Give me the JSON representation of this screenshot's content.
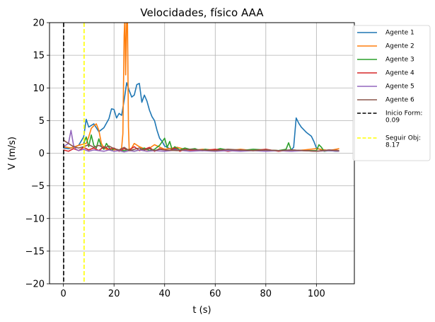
{
  "chart_data": {
    "type": "line",
    "title": "Velocidades, físico AAA",
    "xlabel": "t (s)",
    "ylabel": "V (m/s)",
    "xlim": [
      -5.5,
      115
    ],
    "ylim": [
      -20,
      20
    ],
    "xticks": [
      0,
      20,
      40,
      60,
      80,
      100
    ],
    "yticks": [
      -20,
      -15,
      -10,
      -5,
      0,
      5,
      10,
      15,
      20
    ],
    "xtick_labels": [
      "0",
      "20",
      "40",
      "60",
      "80",
      "100"
    ],
    "ytick_labels": [
      "−20",
      "−15",
      "−10",
      "−5",
      "0",
      "5",
      "10",
      "15",
      "20"
    ],
    "grid": true,
    "legend_position": "outside-right-top",
    "series": [
      {
        "name": "Agente 1",
        "color": "#1f77b4",
        "x": [
          0,
          2,
          4,
          6,
          8,
          9,
          10,
          12,
          14,
          16,
          18,
          19,
          20,
          21,
          22,
          23,
          24,
          25,
          26,
          27,
          28,
          29,
          30,
          31,
          32,
          33,
          34,
          35,
          36,
          37,
          38,
          39,
          40,
          41,
          42,
          44,
          46,
          48,
          50,
          55,
          60,
          65,
          70,
          75,
          80,
          85,
          90,
          91,
          92,
          93,
          94,
          96,
          98,
          99,
          100,
          102,
          105,
          108,
          109
        ],
        "y": [
          0.8,
          0.7,
          0.9,
          1.2,
          2.5,
          5.2,
          4.0,
          4.5,
          3.3,
          3.9,
          5.3,
          6.8,
          6.7,
          5.4,
          6.1,
          5.8,
          8.1,
          10.8,
          9.6,
          8.6,
          8.9,
          10.5,
          10.7,
          7.8,
          8.9,
          8.0,
          6.6,
          5.6,
          5.0,
          3.5,
          2.3,
          1.8,
          1.1,
          0.9,
          0.7,
          0.6,
          0.5,
          0.4,
          0.5,
          0.4,
          0.5,
          0.4,
          0.5,
          0.4,
          0.5,
          0.4,
          0.5,
          0.9,
          5.4,
          4.6,
          4.0,
          3.2,
          2.6,
          1.8,
          0.8,
          0.5,
          0.4,
          0.3,
          0.3
        ]
      },
      {
        "name": "Agente 2",
        "color": "#ff7f0e",
        "x": [
          0,
          3,
          6,
          9,
          10,
          11,
          12,
          13,
          14,
          15,
          16,
          17,
          18,
          19,
          20,
          21,
          22,
          23,
          23.5,
          24,
          24.3,
          24.6,
          25,
          25.3,
          25.7,
          26,
          27,
          28,
          30,
          33,
          36,
          40,
          45,
          50,
          55,
          60,
          65,
          70,
          75,
          80,
          85,
          90,
          95,
          100,
          105,
          109
        ],
        "y": [
          1.0,
          0.8,
          1.2,
          1.5,
          2.5,
          3.8,
          4.2,
          4.5,
          3.5,
          1.5,
          0.8,
          0.6,
          0.5,
          0.7,
          0.5,
          0.6,
          0.4,
          0.8,
          3.0,
          18.0,
          21.0,
          12.0,
          20.5,
          21.0,
          4.0,
          0.5,
          0.8,
          1.5,
          1.0,
          0.5,
          1.3,
          0.6,
          0.9,
          0.4,
          0.6,
          0.5,
          0.4,
          0.6,
          0.4,
          0.5,
          0.4,
          0.3,
          0.5,
          0.7,
          0.4,
          0.7
        ]
      },
      {
        "name": "Agente 3",
        "color": "#2ca02c",
        "x": [
          8,
          9,
          10,
          11,
          12,
          13,
          14,
          15,
          16,
          17,
          18,
          19,
          20,
          22,
          24,
          26,
          28,
          30,
          32,
          34,
          36,
          38,
          40,
          41,
          42,
          43,
          44,
          46,
          48,
          50,
          52,
          54,
          56,
          58,
          60,
          62,
          65,
          70,
          75,
          80,
          85,
          88,
          89,
          90,
          95,
          100,
          101,
          102,
          103,
          105,
          109
        ],
        "y": [
          1.5,
          2.5,
          1.0,
          2.8,
          1.2,
          0.8,
          2.2,
          1.0,
          0.6,
          1.5,
          0.9,
          0.4,
          0.7,
          0.5,
          0.4,
          0.6,
          0.3,
          0.5,
          0.8,
          0.4,
          0.6,
          1.2,
          2.3,
          0.9,
          1.8,
          0.5,
          1.0,
          0.5,
          0.8,
          0.6,
          0.7,
          0.4,
          0.6,
          0.5,
          0.5,
          0.7,
          0.5,
          0.4,
          0.6,
          0.5,
          0.4,
          0.6,
          1.6,
          0.5,
          0.4,
          0.4,
          1.3,
          0.9,
          0.3,
          0.4,
          0.3
        ]
      },
      {
        "name": "Agente 4",
        "color": "#d62728",
        "x": [
          0,
          2,
          4,
          6,
          8,
          10,
          12,
          14,
          16,
          18,
          20,
          22,
          24,
          26,
          28,
          30,
          32,
          34,
          36,
          38,
          40,
          42,
          44,
          46,
          48,
          50,
          55,
          60,
          65,
          70,
          75,
          80,
          85,
          90,
          95,
          100,
          105,
          109
        ],
        "y": [
          0.5,
          0.3,
          0.7,
          0.4,
          0.9,
          0.5,
          0.8,
          0.4,
          1.0,
          0.6,
          0.8,
          0.3,
          0.7,
          0.5,
          1.0,
          0.4,
          0.6,
          0.9,
          0.3,
          0.7,
          0.5,
          0.4,
          0.8,
          0.3,
          0.6,
          0.5,
          0.4,
          0.6,
          0.3,
          0.5,
          0.4,
          0.6,
          0.3,
          0.5,
          0.4,
          0.3,
          0.5,
          0.4
        ]
      },
      {
        "name": "Agente 5",
        "color": "#9467bd",
        "x": [
          0,
          2,
          3,
          4,
          5,
          6,
          8,
          10,
          12,
          14,
          16,
          18,
          20,
          22,
          24,
          26,
          28,
          30,
          33,
          36,
          40,
          45,
          50,
          55,
          60,
          65,
          70,
          75,
          80,
          85,
          90,
          95,
          100,
          105,
          109
        ],
        "y": [
          1.0,
          1.5,
          3.5,
          1.2,
          0.6,
          0.4,
          0.6,
          0.3,
          0.5,
          0.4,
          0.3,
          0.5,
          0.3,
          0.4,
          0.2,
          0.4,
          0.3,
          0.5,
          0.3,
          0.4,
          0.3,
          0.5,
          0.3,
          0.4,
          0.3,
          0.4,
          0.3,
          0.4,
          0.3,
          0.4,
          0.3,
          0.4,
          0.3,
          0.4,
          0.3
        ]
      },
      {
        "name": "Agente 6",
        "color": "#8c564b",
        "x": [
          0,
          2,
          4,
          6,
          8,
          10,
          12,
          14,
          16,
          18,
          20,
          22,
          24,
          26,
          28,
          30,
          32,
          34,
          36,
          38,
          40,
          45,
          50,
          55,
          60,
          65,
          70,
          75,
          80,
          85,
          90,
          95,
          100,
          105,
          109
        ],
        "y": [
          2.0,
          1.5,
          1.0,
          0.8,
          1.0,
          1.3,
          0.9,
          1.2,
          0.8,
          1.1,
          0.7,
          0.5,
          0.9,
          0.4,
          0.6,
          0.8,
          0.5,
          0.7,
          0.4,
          0.6,
          0.5,
          0.4,
          0.6,
          0.5,
          0.4,
          0.6,
          0.5,
          0.4,
          0.5,
          0.4,
          0.5,
          0.4,
          0.3,
          0.5,
          0.4
        ]
      }
    ],
    "vlines": [
      {
        "name": "Inicio Form: 0.09",
        "label_lines": [
          "Inicio Form:",
          "0.09"
        ],
        "x": 0.09,
        "color": "#000000",
        "style": "dashed"
      },
      {
        "name": "Seguir Obj: 8.17",
        "label_lines": [
          "Seguir Obj:",
          "8.17"
        ],
        "x": 8.17,
        "color": "#ffff00",
        "style": "dashed"
      }
    ]
  }
}
